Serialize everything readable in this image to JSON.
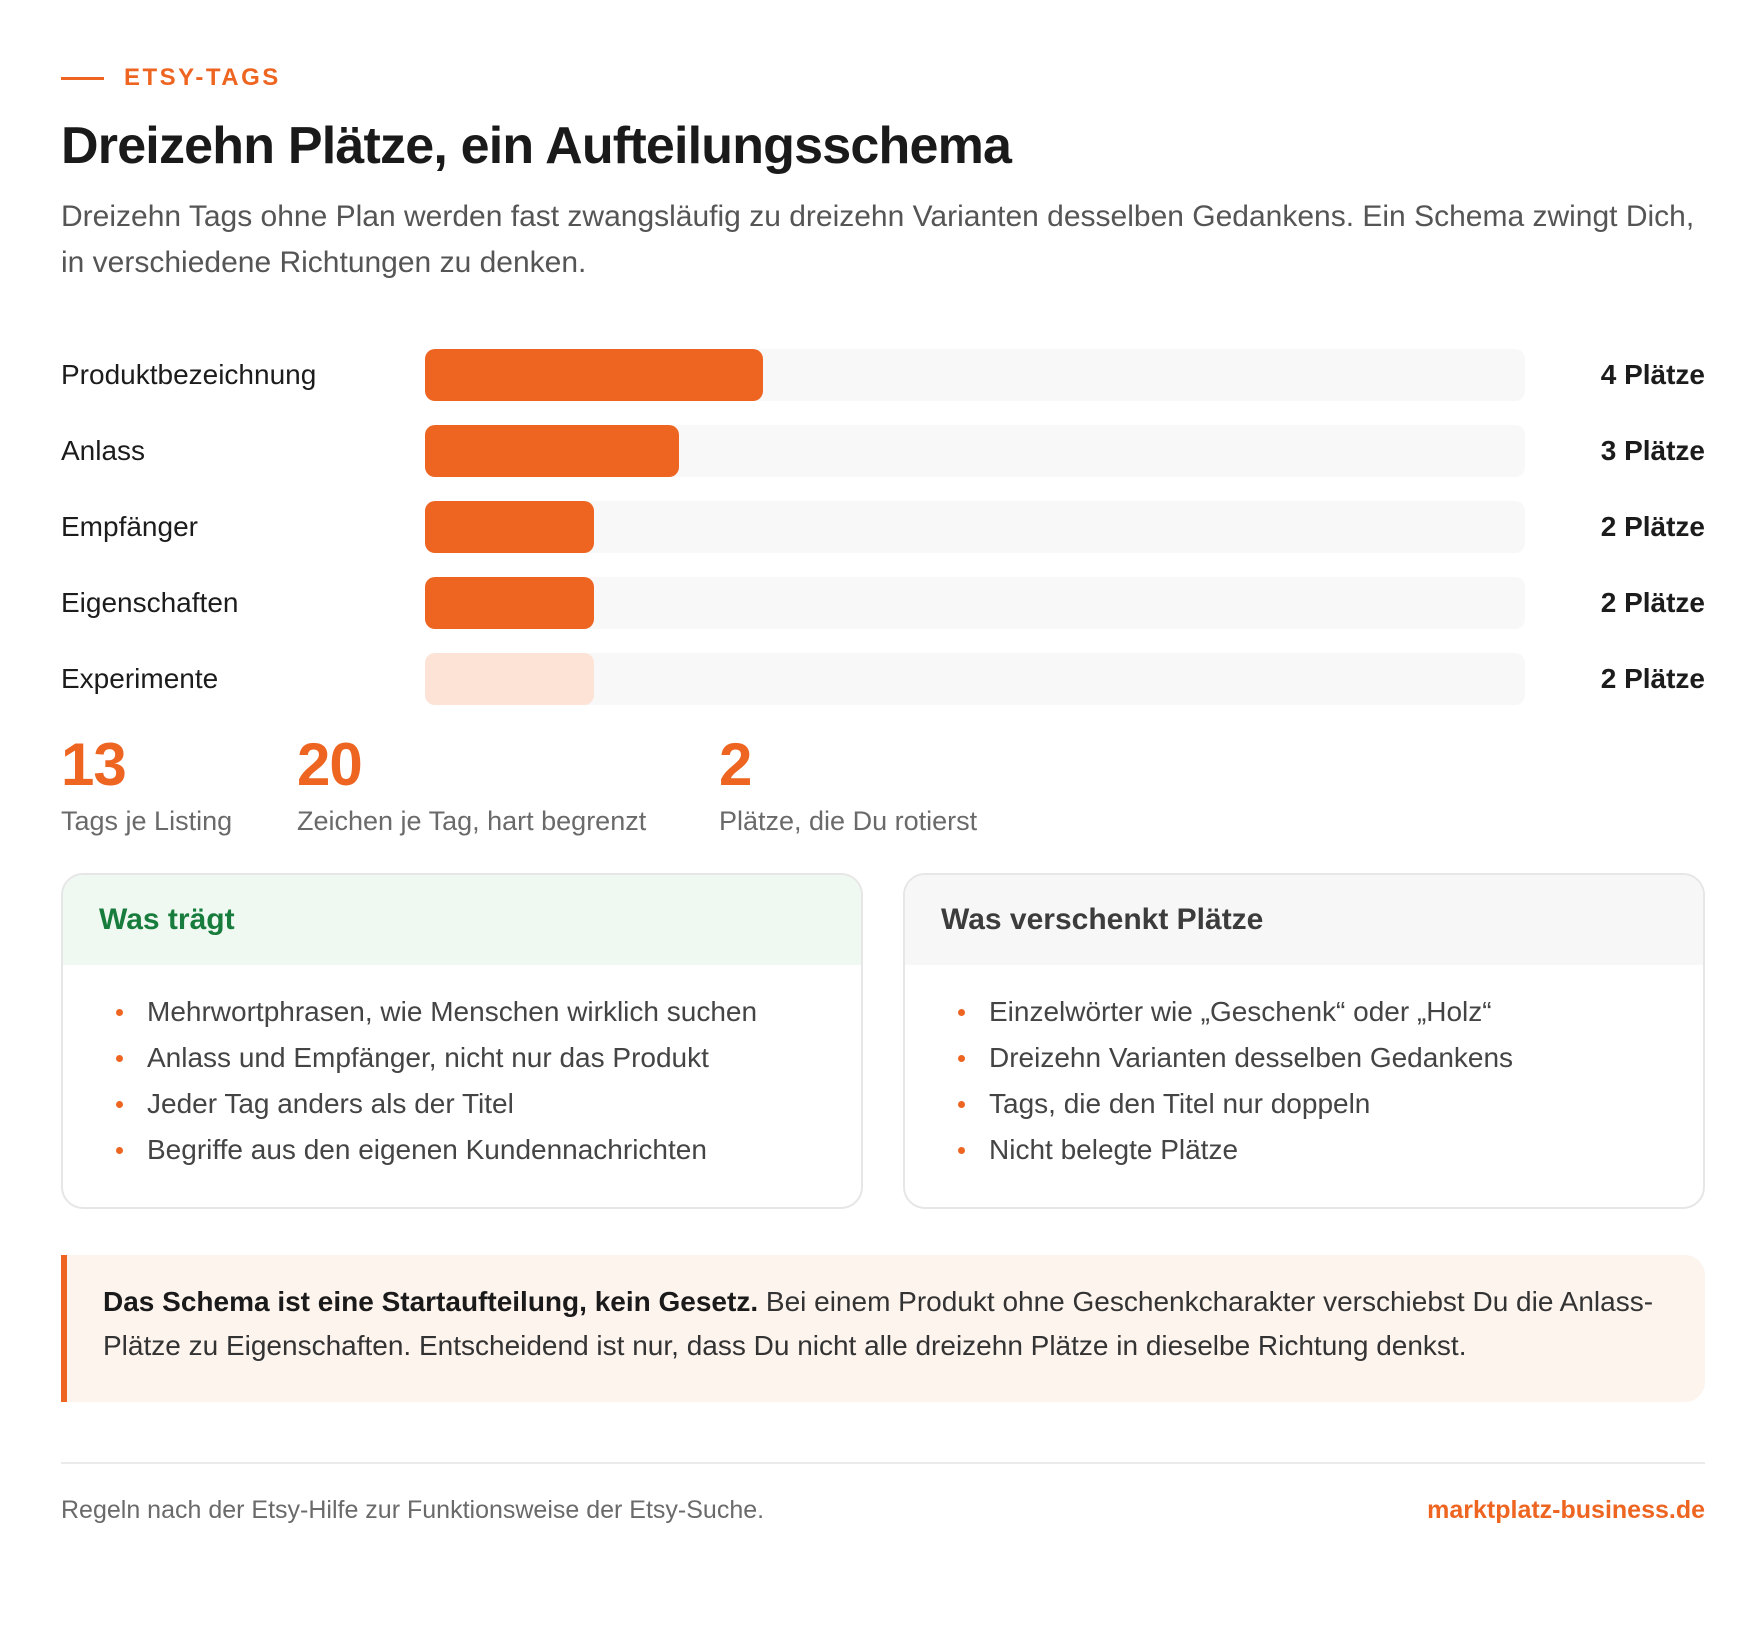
{
  "eyebrow": "ETSY-TAGS",
  "title": "Dreizehn Plätze, ein Aufteilungsschema",
  "intro": "Dreizehn Tags ohne Plan werden fast zwangsläufig zu dreizehn Varianten desselben Gedankens. Ein Schema zwingt Dich, in verschiedene Richtungen zu denken.",
  "colors": {
    "accent": "#ee6522",
    "accent_light": "#fce3d6",
    "track": "#f8f8f8",
    "good_header_bg": "#eff9f2",
    "good_header_text": "#187c3c",
    "callout_bg": "#fdf4ee"
  },
  "chart_data": {
    "type": "bar",
    "orientation": "horizontal",
    "categories": [
      "Produktbezeichnung",
      "Anlass",
      "Empfänger",
      "Eigenschaften",
      "Experimente"
    ],
    "values": [
      4,
      3,
      2,
      2,
      2
    ],
    "value_labels": [
      "4 Plätze",
      "3 Plätze",
      "2 Plätze",
      "2 Plätze",
      "2 Plätze"
    ],
    "unit": "Plätze",
    "xlim": [
      0,
      13
    ],
    "highlight": [
      true,
      true,
      true,
      true,
      false
    ],
    "title": "",
    "xlabel": "",
    "ylabel": "",
    "grid": false
  },
  "stats": [
    {
      "number": "13",
      "label": "Tags je Listing"
    },
    {
      "number": "20",
      "label": "Zeichen je Tag, hart begrenzt"
    },
    {
      "number": "2",
      "label": "Plätze, die Du rotierst"
    }
  ],
  "cards": {
    "good": {
      "title": "Was trägt",
      "items": [
        "Mehrwortphrasen, wie Menschen wirklich suchen",
        "Anlass und Empfänger, nicht nur das Produkt",
        "Jeder Tag anders als der Titel",
        "Begriffe aus den eigenen Kundennachrichten"
      ]
    },
    "bad": {
      "title": "Was verschenkt Plätze",
      "items": [
        "Einzelwörter wie „Geschenk“ oder „Holz“",
        "Dreizehn Varianten desselben Gedankens",
        "Tags, die den Titel nur doppeln",
        "Nicht belegte Plätze"
      ]
    }
  },
  "callout": {
    "bold": "Das Schema ist eine Startaufteilung, kein Gesetz.",
    "text": " Bei einem Produkt ohne Geschenkcharakter verschiebst Du die Anlass-Plätze zu Eigenschaften. Entscheidend ist nur, dass Du nicht alle dreizehn Plätze in dieselbe Richtung denkst."
  },
  "footer": {
    "note": "Regeln nach der Etsy-Hilfe zur Funktionsweise der Etsy-Suche.",
    "brand": "marktplatz-business.de"
  }
}
